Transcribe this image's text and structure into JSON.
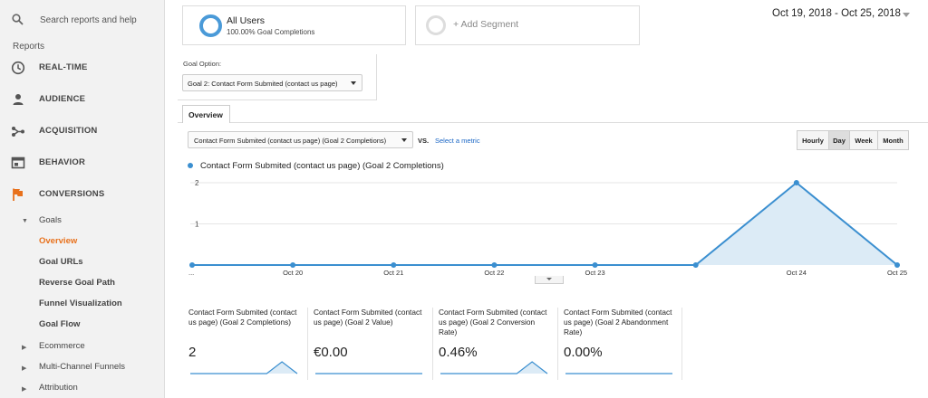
{
  "search": {
    "placeholder": "Search reports and help"
  },
  "sidebar": {
    "heading": "Reports",
    "items": [
      {
        "label": "REAL-TIME",
        "icon": "clock-icon"
      },
      {
        "label": "AUDIENCE",
        "icon": "person-icon"
      },
      {
        "label": "ACQUISITION",
        "icon": "share-icon"
      },
      {
        "label": "BEHAVIOR",
        "icon": "window-icon"
      },
      {
        "label": "CONVERSIONS",
        "icon": "flag-icon"
      }
    ],
    "goals": {
      "label": "Goals",
      "children": [
        "Overview",
        "Goal URLs",
        "Reverse Goal Path",
        "Funnel Visualization",
        "Goal Flow"
      ],
      "active": "Overview"
    },
    "groups": [
      "Ecommerce",
      "Multi-Channel Funnels",
      "Attribution"
    ]
  },
  "segments": {
    "primary": {
      "title": "All Users",
      "subtitle": "100.00% Goal Completions"
    },
    "add_label": "+ Add Segment"
  },
  "date_range": "Oct 19, 2018 - Oct 25, 2018",
  "goal_option": {
    "label": "Goal Option:",
    "selected": "Goal 2: Contact Form Submited (contact us page)"
  },
  "tabs": [
    "Overview"
  ],
  "metric_selector": {
    "selected": "Contact Form Submited (contact us page) (Goal 2 Completions)",
    "vs_label": "VS.",
    "select_metric": "Select a metric"
  },
  "granularity": {
    "options": [
      "Hourly",
      "Day",
      "Week",
      "Month"
    ],
    "active": "Day"
  },
  "chart_data": {
    "type": "area",
    "series": [
      {
        "name": "Contact Form Submited (contact us page) (Goal 2 Completions)",
        "values": [
          0,
          0,
          0,
          0,
          0,
          0,
          2,
          0
        ]
      }
    ],
    "x_ticks": [
      "...",
      "Oct 20",
      "Oct 21",
      "Oct 22",
      "Oct 23",
      "Oct 24",
      "Oct 25"
    ],
    "y_ticks": [
      "2",
      "1"
    ],
    "ylim": [
      0,
      2
    ],
    "color": "#3b8fd0",
    "fill": "#dcebf6"
  },
  "scorecards": [
    {
      "title": "Contact Form Submited (contact us page) (Goal 2 Completions)",
      "value": "2",
      "spark": [
        0,
        0,
        0,
        0,
        0,
        0,
        2,
        0
      ]
    },
    {
      "title": "Contact Form Submited (contact us page) (Goal 2 Value)",
      "value": "€0.00",
      "spark": [
        0,
        0,
        0,
        0,
        0,
        0,
        0,
        0
      ]
    },
    {
      "title": "Contact Form Submited (contact us page) (Goal 2 Conversion Rate)",
      "value": "0.46%",
      "spark": [
        0,
        0,
        0,
        0,
        0,
        0,
        2,
        0
      ]
    },
    {
      "title": "Contact Form Submited (contact us page) (Goal 2 Abandonment Rate)",
      "value": "0.00%",
      "spark": [
        0,
        0,
        0,
        0,
        0,
        0,
        0,
        0
      ]
    }
  ]
}
